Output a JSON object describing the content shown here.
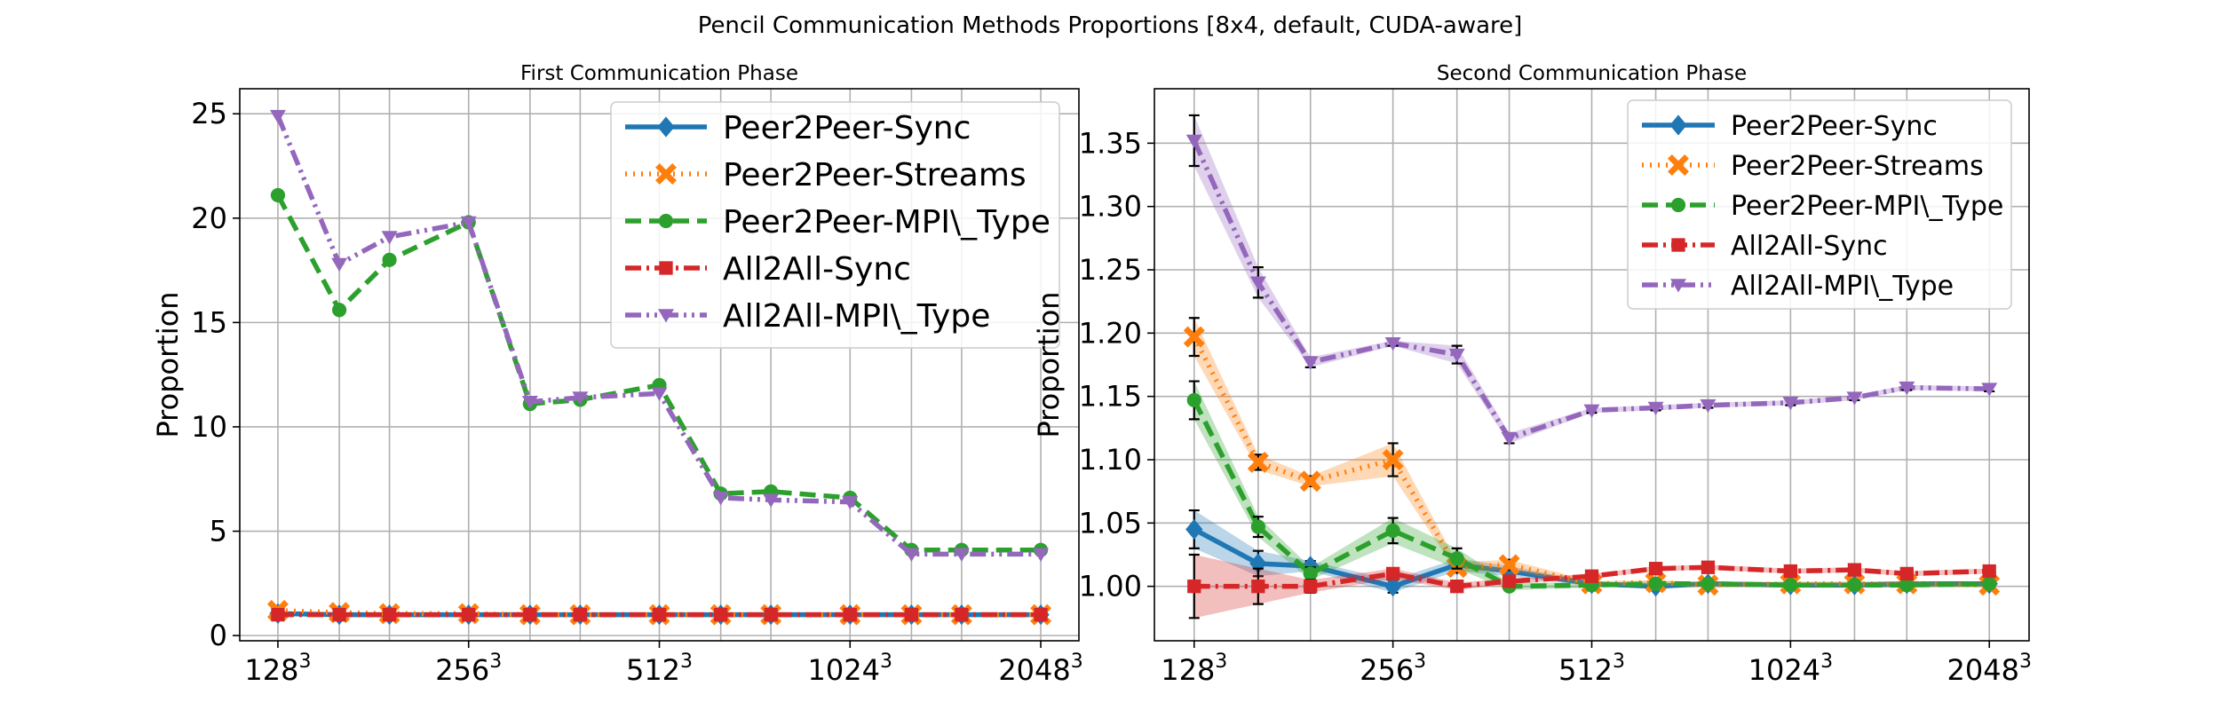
{
  "figure_title": "Pencil Communication Methods Proportions [8x4, default, CUDA-aware]",
  "colors": {
    "Peer2Peer-Sync": "#1f77b4",
    "Peer2Peer-Streams": "#ff7f0e",
    "Peer2Peer-MPI\\_Type": "#2ca02c",
    "All2All-Sync": "#d62728",
    "All2All-MPI\\_Type": "#9467bd"
  },
  "chart_data": [
    {
      "type": "line",
      "title": "First Communication Phase",
      "xlabel": "",
      "ylabel": "Proportion",
      "x": [
        128,
        160,
        192,
        256,
        320,
        384,
        512,
        640,
        768,
        1024,
        1280,
        1536,
        2048
      ],
      "x_scale": "log2",
      "xticks": [
        128,
        256,
        512,
        1024,
        2048
      ],
      "xtick_labels": [
        "128",
        "256",
        "512",
        "1024",
        "2048"
      ],
      "xtick_superscript": "3",
      "yticks": [
        0,
        5,
        10,
        15,
        20,
        25
      ],
      "ytick_labels": [
        "0",
        "5",
        "10",
        "15",
        "20",
        "25"
      ],
      "ylim": [
        -0.25,
        26.2
      ],
      "grid": true,
      "legend": "top-right",
      "series": [
        {
          "name": "Peer2Peer-Sync",
          "values": [
            1.05,
            1.0,
            1.0,
            1.0,
            1.0,
            1.0,
            1.0,
            1.0,
            1.0,
            1.0,
            1.0,
            1.0,
            1.0
          ]
        },
        {
          "name": "Peer2Peer-Streams",
          "values": [
            1.2,
            1.1,
            1.05,
            1.05,
            1.0,
            1.0,
            1.0,
            1.0,
            1.0,
            1.0,
            1.0,
            1.0,
            1.0
          ]
        },
        {
          "name": "Peer2Peer-MPI\\_Type",
          "values": [
            21.1,
            15.6,
            18.0,
            19.8,
            11.1,
            11.3,
            12.0,
            6.8,
            6.9,
            6.6,
            4.1,
            4.1,
            4.1
          ]
        },
        {
          "name": "All2All-Sync",
          "values": [
            1.0,
            1.0,
            1.0,
            1.0,
            1.0,
            1.0,
            1.0,
            1.0,
            1.0,
            1.0,
            1.0,
            1.0,
            1.0
          ]
        },
        {
          "name": "All2All-MPI\\_Type",
          "values": [
            24.9,
            17.8,
            19.1,
            19.8,
            11.2,
            11.4,
            11.6,
            6.6,
            6.5,
            6.4,
            3.9,
            3.9,
            3.9
          ]
        }
      ]
    },
    {
      "type": "line",
      "title": "Second Communication Phase",
      "xlabel": "",
      "ylabel": "Proportion",
      "x": [
        128,
        160,
        192,
        256,
        320,
        384,
        512,
        640,
        768,
        1024,
        1280,
        1536,
        2048
      ],
      "x_scale": "log2",
      "xticks": [
        128,
        256,
        512,
        1024,
        2048
      ],
      "xtick_labels": [
        "128",
        "256",
        "512",
        "1024",
        "2048"
      ],
      "xtick_superscript": "3",
      "yticks": [
        1.0,
        1.05,
        1.1,
        1.15,
        1.2,
        1.25,
        1.3,
        1.35
      ],
      "ytick_labels": [
        "1.00",
        "1.05",
        "1.10",
        "1.15",
        "1.20",
        "1.25",
        "1.30",
        "1.35"
      ],
      "ylim": [
        0.957,
        1.393
      ],
      "grid": true,
      "legend": "top-right",
      "series": [
        {
          "name": "Peer2Peer-Sync",
          "values": [
            1.045,
            1.018,
            1.016,
            1.0,
            1.017,
            1.012,
            1.002,
            1.0,
            1.002,
            1.001,
            1.001,
            1.002,
            1.002
          ],
          "err": [
            0.015,
            0.01,
            0.004,
            0.005,
            0.005,
            0.004,
            0.002,
            0.002,
            0.002,
            0.002,
            0.002,
            0.002,
            0.002
          ]
        },
        {
          "name": "Peer2Peer-Streams",
          "values": [
            1.197,
            1.098,
            1.083,
            1.1,
            1.015,
            1.017,
            1.002,
            1.003,
            1.001,
            1.002,
            1.002,
            1.002,
            1.001
          ],
          "err": [
            0.015,
            0.006,
            0.004,
            0.013,
            0.004,
            0.004,
            0.002,
            0.002,
            0.002,
            0.002,
            0.002,
            0.002,
            0.002
          ]
        },
        {
          "name": "Peer2Peer-MPI\\_Type",
          "values": [
            1.147,
            1.047,
            1.01,
            1.044,
            1.022,
            1.0,
            1.001,
            1.002,
            1.002,
            1.001,
            1.001,
            1.001,
            1.002
          ],
          "err": [
            0.015,
            0.008,
            0.005,
            0.01,
            0.008,
            0.003,
            0.002,
            0.002,
            0.002,
            0.002,
            0.002,
            0.002,
            0.002
          ]
        },
        {
          "name": "All2All-Sync",
          "values": [
            1.0,
            1.0,
            1.0,
            1.01,
            1.0,
            1.004,
            1.008,
            1.014,
            1.015,
            1.012,
            1.013,
            1.01,
            1.012
          ],
          "err": [
            0.025,
            0.014,
            0.005,
            0.004,
            0.003,
            0.002,
            0.002,
            0.002,
            0.002,
            0.002,
            0.002,
            0.002,
            0.002
          ]
        },
        {
          "name": "All2All-MPI\\_Type",
          "values": [
            1.352,
            1.24,
            1.177,
            1.192,
            1.183,
            1.117,
            1.139,
            1.141,
            1.143,
            1.145,
            1.149,
            1.157,
            1.156
          ],
          "err": [
            0.02,
            0.012,
            0.004,
            0.002,
            0.007,
            0.004,
            0.002,
            0.002,
            0.002,
            0.002,
            0.002,
            0.002,
            0.002
          ]
        }
      ]
    }
  ]
}
